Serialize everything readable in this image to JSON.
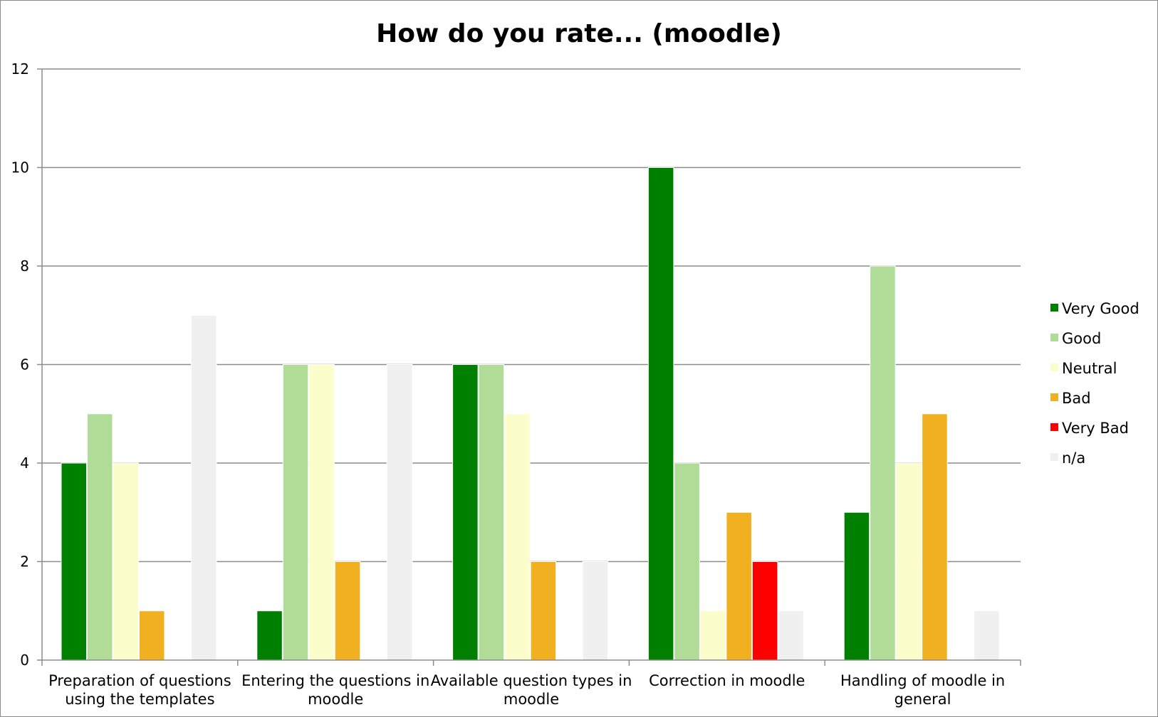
{
  "chart_data": {
    "type": "bar",
    "title": "How do you rate... (moodle)",
    "xlabel": "",
    "ylabel": "",
    "ylim": [
      0,
      12
    ],
    "yticks": [
      0,
      2,
      4,
      6,
      8,
      10,
      12
    ],
    "grid": true,
    "legend_position": "right",
    "categories": [
      [
        "Preparation of questions",
        "using the templates"
      ],
      [
        "Entering the questions in",
        "moodle"
      ],
      [
        "Available question types in",
        "moodle"
      ],
      [
        "Correction in moodle"
      ],
      [
        "Handling of moodle in",
        "general"
      ]
    ],
    "series": [
      {
        "name": "Very Good",
        "color": "#008000",
        "values": [
          4,
          1,
          6,
          10,
          3
        ]
      },
      {
        "name": "Good",
        "color": "#b0dc98",
        "values": [
          5,
          6,
          6,
          4,
          8
        ]
      },
      {
        "name": "Neutral",
        "color": "#fbfdcb",
        "values": [
          4,
          6,
          5,
          1,
          4
        ]
      },
      {
        "name": "Bad",
        "color": "#f0b020",
        "values": [
          1,
          2,
          2,
          3,
          5
        ]
      },
      {
        "name": "Very Bad",
        "color": "#ff0000",
        "values": [
          0,
          0,
          0,
          2,
          0
        ]
      },
      {
        "name": "n/a",
        "color": "#f0f0f0",
        "values": [
          7,
          6,
          2,
          1,
          1
        ]
      }
    ]
  }
}
